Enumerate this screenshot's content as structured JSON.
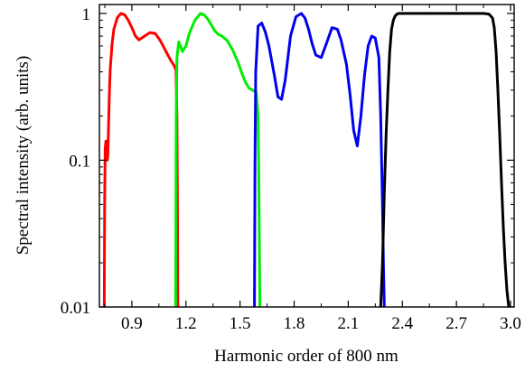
{
  "chart_data": {
    "type": "line",
    "xlabel": "Harmonic order of 800 nm",
    "ylabel": "Spectral intensity (arb. units)",
    "xlim": [
      0.72,
      3.02
    ],
    "ylim": [
      0.01,
      1.15
    ],
    "yscale": "log",
    "grid": false,
    "x_ticks": [
      0.9,
      1.2,
      1.5,
      1.8,
      2.1,
      2.4,
      2.7,
      3.0
    ],
    "x_tick_labels": [
      "0.9",
      "1.2",
      "1.5",
      "1.8",
      "2.1",
      "2.4",
      "2.7",
      "3.0"
    ],
    "y_ticks": [
      0.01,
      0.1,
      1
    ],
    "y_tick_labels": [
      "0.01",
      "0.1",
      "1"
    ],
    "series": [
      {
        "color": "#ff0000",
        "x": [
          0.747,
          0.749,
          0.752,
          0.756,
          0.76,
          0.764,
          0.767,
          0.77,
          0.775,
          0.78,
          0.79,
          0.8,
          0.82,
          0.84,
          0.86,
          0.88,
          0.9,
          0.92,
          0.94,
          0.97,
          1.0,
          1.03,
          1.055,
          1.08,
          1.1,
          1.12,
          1.135,
          1.145,
          1.15,
          1.153,
          1.155
        ],
        "y": [
          0.01,
          0.05,
          0.12,
          0.135,
          0.12,
          0.1,
          0.11,
          0.16,
          0.28,
          0.42,
          0.62,
          0.78,
          0.94,
          1.0,
          0.98,
          0.9,
          0.8,
          0.7,
          0.66,
          0.7,
          0.74,
          0.73,
          0.66,
          0.58,
          0.52,
          0.47,
          0.44,
          0.41,
          0.2,
          0.05,
          0.01
        ]
      },
      {
        "color": "#00ee00",
        "x": [
          1.143,
          1.146,
          1.15,
          1.16,
          1.17,
          1.18,
          1.2,
          1.22,
          1.25,
          1.28,
          1.3,
          1.32,
          1.34,
          1.36,
          1.38,
          1.4,
          1.43,
          1.46,
          1.49,
          1.51,
          1.53,
          1.55,
          1.57,
          1.59,
          1.6,
          1.604,
          1.607,
          1.61
        ],
        "y": [
          0.01,
          0.2,
          0.5,
          0.64,
          0.6,
          0.55,
          0.6,
          0.74,
          0.9,
          1.0,
          0.98,
          0.92,
          0.84,
          0.76,
          0.72,
          0.7,
          0.65,
          0.56,
          0.46,
          0.39,
          0.34,
          0.31,
          0.3,
          0.29,
          0.2,
          0.08,
          0.03,
          0.01
        ]
      },
      {
        "color": "#0000ee",
        "x": [
          1.58,
          1.583,
          1.587,
          1.6,
          1.62,
          1.64,
          1.66,
          1.69,
          1.71,
          1.73,
          1.75,
          1.78,
          1.81,
          1.84,
          1.86,
          1.88,
          1.9,
          1.92,
          1.95,
          1.98,
          2.01,
          2.04,
          2.06,
          2.09,
          2.11,
          2.13,
          2.15,
          2.17,
          2.19,
          2.21,
          2.23,
          2.25,
          2.27,
          2.28,
          2.29,
          2.295,
          2.3
        ],
        "y": [
          0.01,
          0.1,
          0.4,
          0.82,
          0.86,
          0.75,
          0.6,
          0.38,
          0.27,
          0.26,
          0.35,
          0.7,
          0.95,
          1.0,
          0.93,
          0.78,
          0.62,
          0.52,
          0.5,
          0.63,
          0.8,
          0.78,
          0.66,
          0.45,
          0.28,
          0.16,
          0.125,
          0.2,
          0.38,
          0.6,
          0.7,
          0.68,
          0.5,
          0.2,
          0.05,
          0.02,
          0.01
        ]
      },
      {
        "color": "#000000",
        "x": [
          2.28,
          2.29,
          2.3,
          2.31,
          2.32,
          2.33,
          2.34,
          2.35,
          2.36,
          2.37,
          2.38,
          2.4,
          2.45,
          2.5,
          2.6,
          2.7,
          2.8,
          2.85,
          2.88,
          2.9,
          2.91,
          2.92,
          2.93,
          2.94,
          2.95,
          2.96,
          2.97,
          2.98,
          2.99
        ],
        "y": [
          0.01,
          0.02,
          0.06,
          0.15,
          0.3,
          0.55,
          0.78,
          0.9,
          0.96,
          0.99,
          1.0,
          1.0,
          1.0,
          1.0,
          1.0,
          1.0,
          1.0,
          1.0,
          0.99,
          0.93,
          0.8,
          0.55,
          0.3,
          0.15,
          0.07,
          0.035,
          0.02,
          0.013,
          0.01
        ]
      }
    ]
  }
}
